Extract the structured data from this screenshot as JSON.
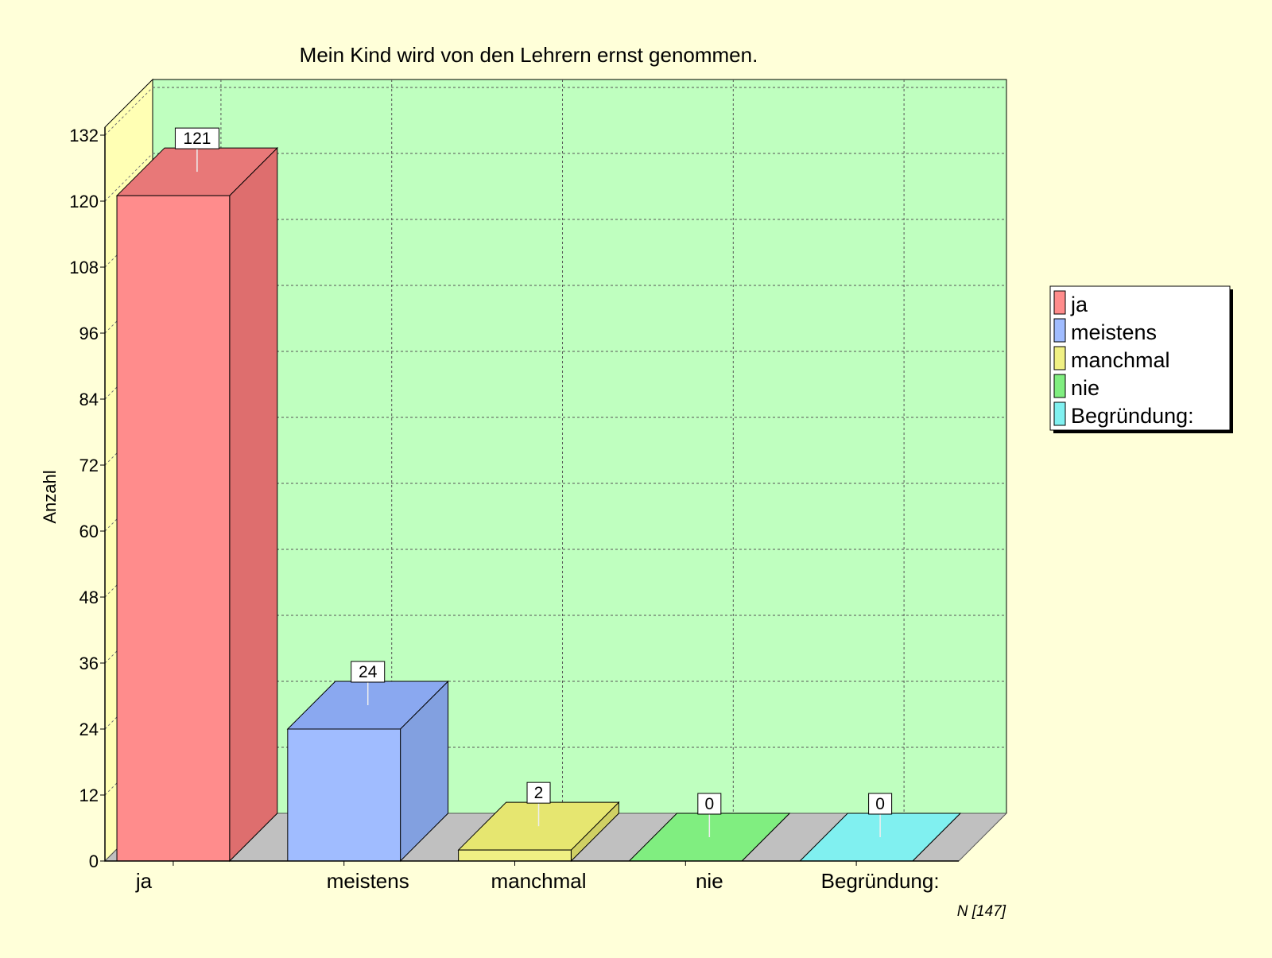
{
  "chart_data": {
    "type": "bar",
    "title": "Mein Kind wird von den Lehrern ernst genommen.",
    "ylabel": "Anzahl",
    "xlabel": "",
    "ylim": [
      0,
      132
    ],
    "yticks": [
      0,
      12,
      24,
      36,
      48,
      60,
      72,
      84,
      96,
      108,
      120,
      132
    ],
    "categories": [
      "ja",
      "meistens",
      "manchmal",
      "nie",
      "Begründung:"
    ],
    "values": [
      121,
      24,
      2,
      0,
      0
    ],
    "three_d": true,
    "grid": true,
    "legend": {
      "position": "right",
      "entries": [
        "ja",
        "meistens",
        "manchmal",
        "nie",
        "Begründung:"
      ]
    },
    "colors": {
      "front": [
        "#ff8c8c",
        "#a0bcff",
        "#f0f084",
        "#80ee80",
        "#80f0f0"
      ],
      "side": [
        "#de6e6e",
        "#82a0e0",
        "#d0d064",
        "#5ccc5c",
        "#5cd0d0"
      ],
      "top": [
        "#e87878",
        "#8aa8f0",
        "#e6e670",
        "#80ee80",
        "#80f0f0"
      ],
      "back_wall": "#bfffbf",
      "side_wall": "#ffffb4",
      "floor": "#c0c0c0",
      "background": "#ffffd9"
    },
    "footnote": "N [147]"
  }
}
